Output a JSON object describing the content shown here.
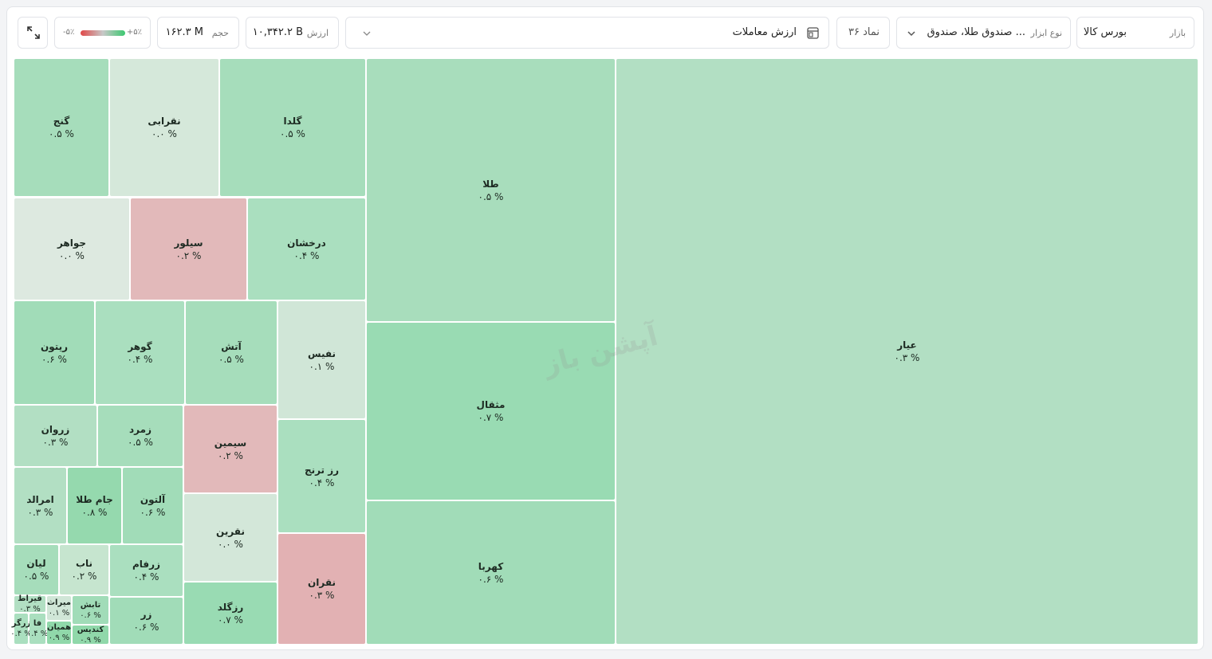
{
  "toolbar": {
    "market_label": "بازار",
    "market": "بورس کالا",
    "type_label": "نوع ابزار",
    "type": "صندوق طلا، صندوق ...",
    "symbols": "۳۶ نماد",
    "metric": "ارزش معاملات",
    "value_label": "ارزش",
    "value": "۱۰,۳۴۲.۲ B",
    "volume_label": "حجم",
    "volume": "۱۶۲.۳ M",
    "legend_max": "+۵٪",
    "legend_min": "-۵٪"
  },
  "watermark": "آپشن باز",
  "tiles": [
    {
      "name": "عیار",
      "change": "۰.۳ %",
      "color": "#b2dfc3"
    },
    {
      "name": "طلا",
      "change": "۰.۵ %",
      "color": "#a8ddbc"
    },
    {
      "name": "مثقال",
      "change": "۰.۷ %",
      "color": "#99dbb3"
    },
    {
      "name": "کهربا",
      "change": "۰.۶ %",
      "color": "#a1dcb8"
    },
    {
      "name": "گنج",
      "change": "۰.۵ %",
      "color": "#a6ddbb"
    },
    {
      "name": "نقرابی",
      "change": "۰.۰ %",
      "color": "#d5e8da"
    },
    {
      "name": "گلدا",
      "change": "۰.۵ %",
      "color": "#a6ddbb"
    },
    {
      "name": "جواهر",
      "change": "۰.۰ %",
      "color": "#dde9e0"
    },
    {
      "name": "سیلور",
      "change": "۰.۲ %",
      "color": "#e2b9ba"
    },
    {
      "name": "درخشان",
      "change": "۰.۴ %",
      "color": "#aadfbf"
    },
    {
      "name": "ریتون",
      "change": "۰.۶ %",
      "color": "#a1dcb8"
    },
    {
      "name": "گوهر",
      "change": "۰.۴ %",
      "color": "#aadfbf"
    },
    {
      "name": "آتش",
      "change": "۰.۵ %",
      "color": "#a6ddbb"
    },
    {
      "name": "نفیس",
      "change": "۰.۱ %",
      "color": "#d0e6d7"
    },
    {
      "name": "زروان",
      "change": "۰.۳ %",
      "color": "#b2dfc3"
    },
    {
      "name": "زمرد",
      "change": "۰.۵ %",
      "color": "#a6ddbb"
    },
    {
      "name": "سیمین",
      "change": "۰.۲ %",
      "color": "#e2b9ba"
    },
    {
      "name": "رز ترنج",
      "change": "۰.۴ %",
      "color": "#aadfbf"
    },
    {
      "name": "امرالد",
      "change": "۰.۳ %",
      "color": "#b2dfc3"
    },
    {
      "name": "جام طلا",
      "change": "۰.۸ %",
      "color": "#95d9ae"
    },
    {
      "name": "آلتون",
      "change": "۰.۶ %",
      "color": "#a1dcb8"
    },
    {
      "name": "نقرین",
      "change": "۰.۰ %",
      "color": "#d3e7d9"
    },
    {
      "name": "نقران",
      "change": "۰.۳ %",
      "color": "#e2b1b3"
    },
    {
      "name": "لیان",
      "change": "۰.۵ %",
      "color": "#a6ddbb"
    },
    {
      "name": "ناب",
      "change": "۰.۲ %",
      "color": "#c6e5cf"
    },
    {
      "name": "زرفام",
      "change": "۰.۴ %",
      "color": "#aadfbf"
    },
    {
      "name": "رزگلد",
      "change": "۰.۷ %",
      "color": "#99dbb3"
    },
    {
      "name": "زر",
      "change": "۰.۶ %",
      "color": "#a1dcb8"
    },
    {
      "name": "قیراط",
      "change": "۰.۳ %",
      "color": "#b2dfc3"
    },
    {
      "name": "زرگر",
      "change": "۰.۴ %",
      "color": "#aadfbf"
    },
    {
      "name": "فا",
      "change": "۰.۴ %",
      "color": "#aadfbf"
    },
    {
      "name": "میراث",
      "change": "۰.۱ %",
      "color": "#d0e6d7"
    },
    {
      "name": "همیان",
      "change": "۰.۹ %",
      "color": "#90d8aa"
    },
    {
      "name": "تابش",
      "change": "۰.۶ %",
      "color": "#a1dcb8"
    },
    {
      "name": "کندیس",
      "change": "۰.۹ %",
      "color": "#90d8aa"
    }
  ]
}
